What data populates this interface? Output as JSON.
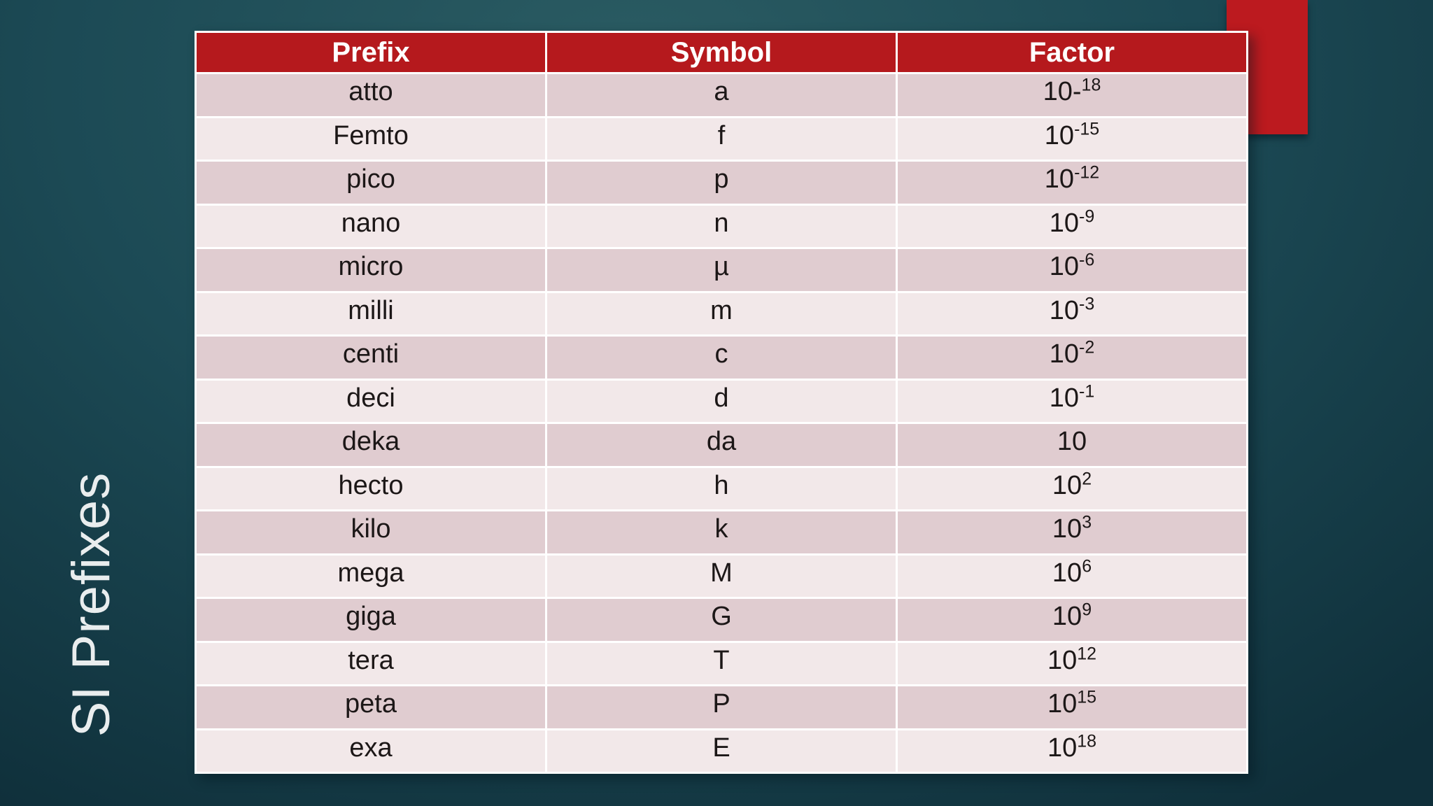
{
  "slide": {
    "title": "SI Prefixes"
  },
  "table": {
    "headers": [
      "Prefix",
      "Symbol",
      "Factor"
    ],
    "rows": [
      {
        "prefix": "atto",
        "symbol": "a",
        "factor_base": "10-",
        "factor_sup": "18"
      },
      {
        "prefix": "Femto",
        "symbol": "f",
        "factor_base": "10",
        "factor_sup": "-15"
      },
      {
        "prefix": "pico",
        "symbol": "p",
        "factor_base": "10",
        "factor_sup": "-12"
      },
      {
        "prefix": "nano",
        "symbol": "n",
        "factor_base": "10",
        "factor_sup": "-9"
      },
      {
        "prefix": "micro",
        "symbol": "µ",
        "factor_base": "10",
        "factor_sup": "-6"
      },
      {
        "prefix": "milli",
        "symbol": "m",
        "factor_base": "10",
        "factor_sup": "-3"
      },
      {
        "prefix": "centi",
        "symbol": "c",
        "factor_base": "10",
        "factor_sup": "-2"
      },
      {
        "prefix": "deci",
        "symbol": "d",
        "factor_base": "10",
        "factor_sup": "-1"
      },
      {
        "prefix": "deka",
        "symbol": "da",
        "factor_base": "10",
        "factor_sup": ""
      },
      {
        "prefix": "hecto",
        "symbol": "h",
        "factor_base": "10",
        "factor_sup": "2"
      },
      {
        "prefix": "kilo",
        "symbol": "k",
        "factor_base": "10",
        "factor_sup": "3"
      },
      {
        "prefix": "mega",
        "symbol": "M",
        "factor_base": "10",
        "factor_sup": "6"
      },
      {
        "prefix": "giga",
        "symbol": "G",
        "factor_base": "10",
        "factor_sup": "9"
      },
      {
        "prefix": "tera",
        "symbol": "T",
        "factor_base": "10",
        "factor_sup": "12"
      },
      {
        "prefix": "peta",
        "symbol": "P",
        "factor_base": "10",
        "factor_sup": "15"
      },
      {
        "prefix": "exa",
        "symbol": "E",
        "factor_base": "10",
        "factor_sup": "18"
      }
    ]
  },
  "colors": {
    "header_bg": "#b5191d",
    "accent_rect": "#bc1a1f",
    "row_dark": "#e0ccd0",
    "row_light": "#f2e8e9",
    "grid_white": "#ffffff",
    "header_text": "#ffffff",
    "cell_text": "#1c1717",
    "title_text": "#e9edee",
    "bg_center": "#2b5c63",
    "bg_mid": "#1c4a55",
    "bg_edge": "#0f2f3a"
  }
}
